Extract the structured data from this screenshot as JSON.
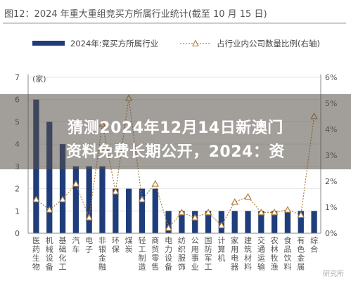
{
  "chart_data": {
    "type": "bar",
    "title": "图12：2024 年重大重组竞买方所属行业统计(截至 10 月 15 日)",
    "ylabel_left": "(家)",
    "ylim_left": [
      0,
      7
    ],
    "yticks_left": [
      "0",
      "1",
      "2",
      "3",
      "4",
      "5",
      "6",
      "7"
    ],
    "ylim_right": [
      0,
      6
    ],
    "yticks_right": [
      "0%",
      "1%",
      "2%",
      "3%",
      "4%",
      "5%",
      "6%"
    ],
    "categories": [
      "医药生物",
      "机械设备",
      "基础化工",
      "汽车",
      "电子",
      "非银金融",
      "环保",
      "煤炭",
      "轻工制造",
      "商贸零售",
      "电力设备",
      "纺织服饰",
      "公用事业",
      "国防军工",
      "计算机",
      "家用电器",
      "建筑材料",
      "交通运输",
      "农林牧渔",
      "食品饮料",
      "有色金属",
      "综合"
    ],
    "category_labels": [
      [
        "医",
        "药",
        "生",
        "物"
      ],
      [
        "机",
        "械",
        "设",
        "备"
      ],
      [
        "基",
        "础",
        "化",
        "工"
      ],
      [
        "汽",
        "车"
      ],
      [
        "电",
        "子"
      ],
      [
        "非",
        "银",
        "金",
        "融"
      ],
      [
        "环",
        "保"
      ],
      [
        "煤",
        "炭"
      ],
      [
        "轻",
        "工",
        "制",
        "造"
      ],
      [
        "商",
        "贸",
        "零",
        "售"
      ],
      [
        "电",
        "力",
        "设",
        "备"
      ],
      [
        "纺",
        "织",
        "服",
        "饰"
      ],
      [
        "公",
        "用",
        "事",
        "业"
      ],
      [
        "国",
        "防",
        "军",
        "工"
      ],
      [
        "计",
        "算",
        "机"
      ],
      [
        "家",
        "用",
        "电",
        "器"
      ],
      [
        "建",
        "筑",
        "材",
        "料"
      ],
      [
        "交",
        "通",
        "运",
        "输"
      ],
      [
        "农",
        "林",
        "牧",
        "渔"
      ],
      [
        "食",
        "品",
        "饮",
        "料"
      ],
      [
        "有",
        "色",
        "金",
        "属"
      ],
      [
        "综",
        "合"
      ]
    ],
    "series": [
      {
        "name": "2024年:竞买方所属行业",
        "type": "bar",
        "axis": "left",
        "color": "#1f3d7a",
        "values": [
          6,
          5,
          4,
          3,
          3,
          3,
          2,
          2,
          2,
          2,
          1,
          1,
          1,
          1,
          1,
          1,
          1,
          1,
          1,
          1,
          1,
          1
        ]
      },
      {
        "name": "占行业内公司数量比例(右轴)",
        "type": "line",
        "axis": "right",
        "color": "#b07f3c",
        "values": [
          1.3,
          0.9,
          1.3,
          1.9,
          0.6,
          4.2,
          1.6,
          5.2,
          1.3,
          1.9,
          0.2,
          0.8,
          0.6,
          0.8,
          0.3,
          1.2,
          1.4,
          0.8,
          0.8,
          0.9,
          0.7,
          4.5
        ]
      }
    ],
    "legend_position": "top"
  },
  "overlay": {
    "line1": "猜测2024年12月14日新澳门",
    "line2": "资料免费长期公开，2024：资"
  },
  "watermark": "研究所"
}
